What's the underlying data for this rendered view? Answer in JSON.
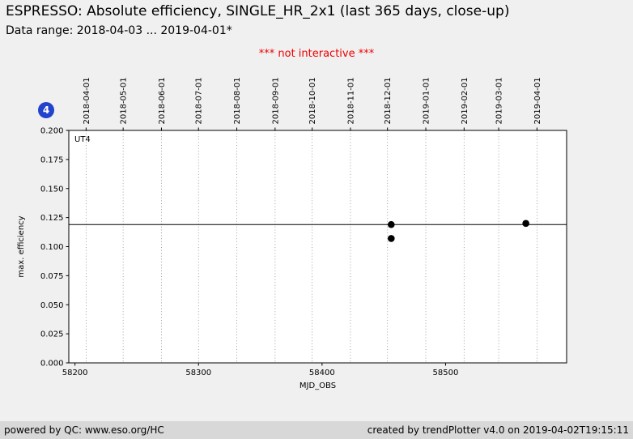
{
  "page": {
    "title": "ESPRESSO: Absolute efficiency, SINGLE_HR_2x1 (last 365 days, close-up)",
    "subtitle": "Data range: 2018-04-03 ... 2019-04-01*",
    "notice": "*** not interactive ***",
    "badge": "4"
  },
  "footer": {
    "left": "powered by QC: www.eso.org/HC",
    "right": "created by trendPlotter v4.0 on 2019-04-02T19:15:11"
  },
  "colors": {
    "page_bg": "#f0f0f0",
    "plot_bg": "#ffffff",
    "footer_bg": "#d8d8d8",
    "notice": "#ee0000",
    "badge_bg": "#2244cc",
    "badge_text": "#ffffff",
    "point": "#000000",
    "grid": "#8a8a8a"
  },
  "chart_data": {
    "type": "scatter",
    "title": "",
    "xlabel": "MJD_OBS",
    "ylabel": "max. efficiency",
    "series_label": "UT4",
    "legend": "none",
    "grid": "vertical dotted lines at month boundaries",
    "xlim": [
      58195,
      58598
    ],
    "ylim": [
      0,
      0.2
    ],
    "x_ticks": [
      58200,
      58300,
      58400,
      58500
    ],
    "y_ticks": [
      0,
      0.025,
      0.05,
      0.075,
      0.1,
      0.125,
      0.15,
      0.175,
      0.2
    ],
    "y_tick_decimals": 3,
    "top_axis_ticks": [
      {
        "label": "2018-04-01",
        "mjd": 58209
      },
      {
        "label": "2018-05-01",
        "mjd": 58239
      },
      {
        "label": "2018-06-01",
        "mjd": 58270
      },
      {
        "label": "2018-07-01",
        "mjd": 58300
      },
      {
        "label": "2018-08-01",
        "mjd": 58331
      },
      {
        "label": "2018-09-01",
        "mjd": 58362
      },
      {
        "label": "2018-10-01",
        "mjd": 58392
      },
      {
        "label": "2018-11-01",
        "mjd": 58423
      },
      {
        "label": "2018-12-01",
        "mjd": 58453
      },
      {
        "label": "2019-01-01",
        "mjd": 58484
      },
      {
        "label": "2019-02-01",
        "mjd": 58515
      },
      {
        "label": "2019-03-01",
        "mjd": 58543
      },
      {
        "label": "2019-04-01",
        "mjd": 58574
      }
    ],
    "reference_line_y": 0.119,
    "points": [
      {
        "x": 58456,
        "y": 0.119
      },
      {
        "x": 58456,
        "y": 0.107
      },
      {
        "x": 58565,
        "y": 0.12
      }
    ]
  }
}
